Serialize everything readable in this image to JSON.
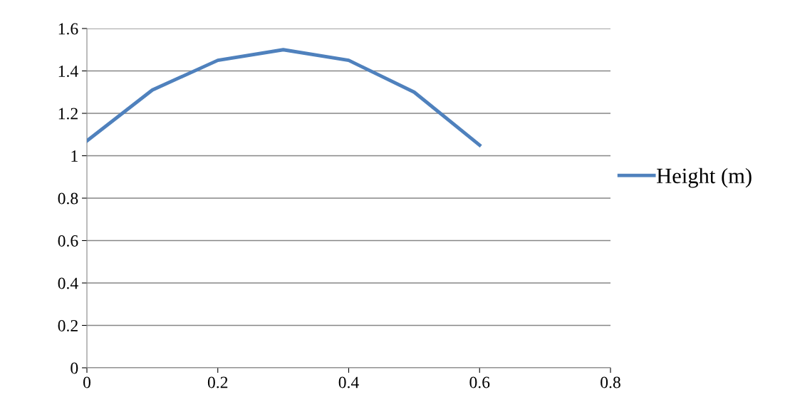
{
  "chart_data": {
    "type": "line",
    "x": [
      0,
      0.1,
      0.2,
      0.3,
      0.4,
      0.5,
      0.6
    ],
    "series": [
      {
        "name": "Height (m)",
        "color": "#4f81bd",
        "values": [
          1.07,
          1.31,
          1.45,
          1.5,
          1.45,
          1.3,
          1.05
        ]
      }
    ],
    "xlim": [
      0,
      0.8
    ],
    "xticks": [
      {
        "value": 0,
        "label": "0"
      },
      {
        "value": 0.2,
        "label": "0.2"
      },
      {
        "value": 0.4,
        "label": "0.4"
      },
      {
        "value": 0.6,
        "label": "0.6"
      },
      {
        "value": 0.8,
        "label": "0.8"
      }
    ],
    "ylim": [
      0,
      1.6
    ],
    "yticks": [
      {
        "value": 0,
        "label": "0"
      },
      {
        "value": 0.2,
        "label": "0.2"
      },
      {
        "value": 0.4,
        "label": "0.4"
      },
      {
        "value": 0.6,
        "label": "0.6"
      },
      {
        "value": 0.8,
        "label": "0.8"
      },
      {
        "value": 1,
        "label": "1"
      },
      {
        "value": 1.2,
        "label": "1.2"
      },
      {
        "value": 1.4,
        "label": "1.4"
      },
      {
        "value": 1.6,
        "label": "1.6"
      }
    ],
    "grid": "y",
    "legend": "right",
    "marker": "none",
    "line_style": "solid"
  }
}
